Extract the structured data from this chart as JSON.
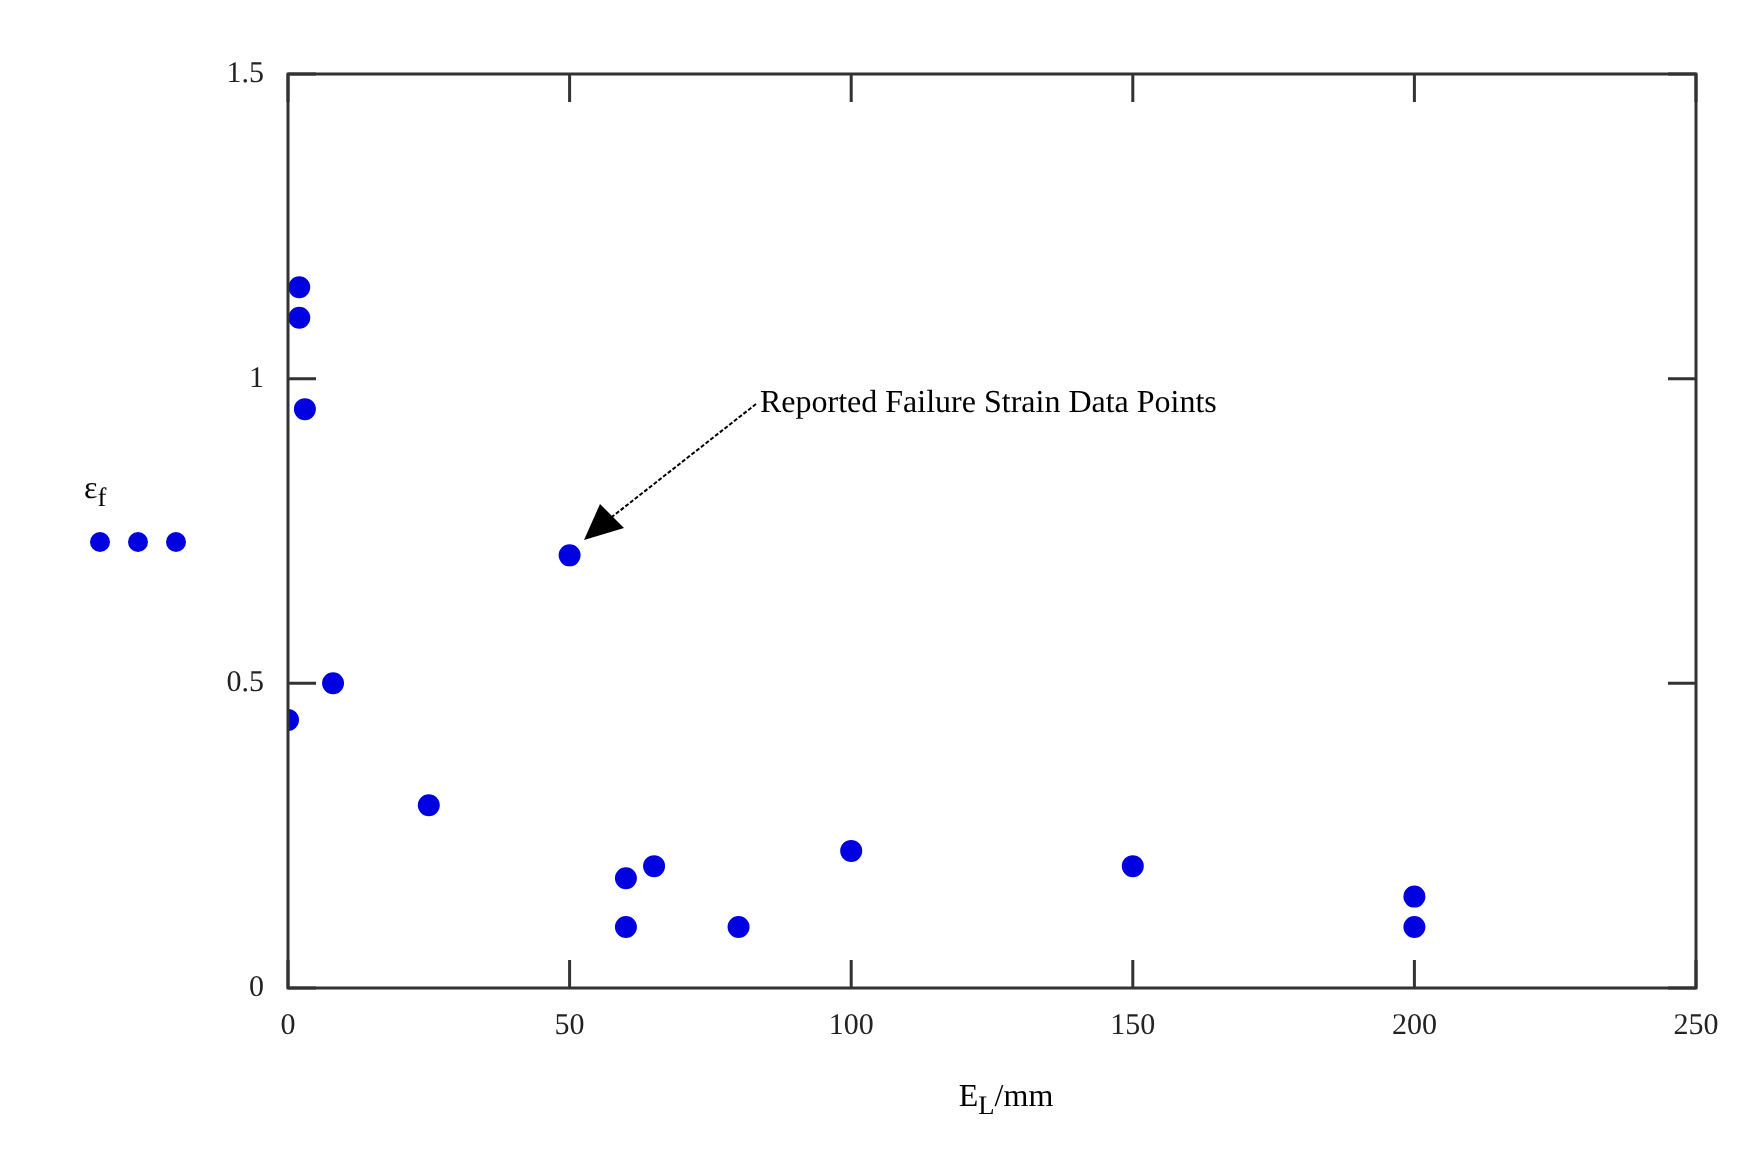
{
  "chart_data": {
    "type": "scatter",
    "xlabel": "E$_{L}$/mm",
    "ylabel": "ε$_{f}$",
    "x": [
      2,
      2,
      3,
      50,
      8,
      0,
      25,
      60,
      65,
      60,
      80,
      100,
      150,
      200,
      200
    ],
    "series": [
      {
        "color": "#0000e0",
        "values": [
          1.15,
          1.1,
          0.95,
          0.71,
          0.5,
          0.44,
          0.3,
          0.18,
          0.2,
          0.1,
          0.1,
          0.225,
          0.2,
          0.15,
          0.1
        ]
      }
    ],
    "xlim": [
      0,
      250
    ],
    "xticks": [
      0,
      50,
      100,
      150,
      200,
      250
    ],
    "ylim": [
      0,
      1.5
    ],
    "yticks": [
      0,
      0.5,
      1,
      1.5
    ],
    "grid": false,
    "marker": "circle",
    "annotations": [
      "Reported Failure Strain Data Points"
    ]
  }
}
